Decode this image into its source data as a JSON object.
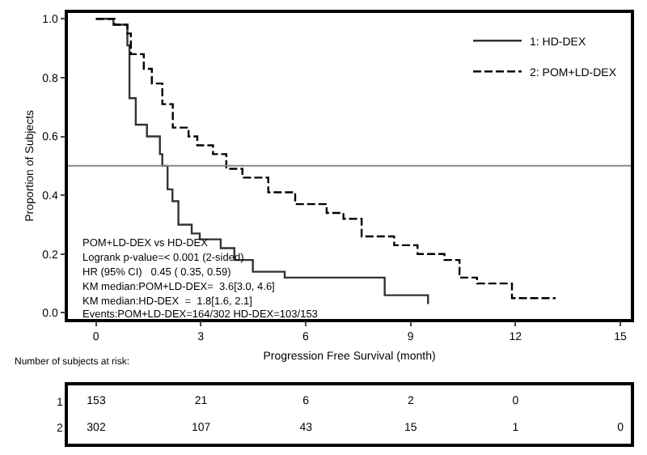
{
  "chart_data": [
    {
      "type": "step",
      "xlabel": "Progression Free Survival (month)",
      "ylabel": "Proportion of Subjects",
      "xlim": [
        -0.8,
        15.3
      ],
      "ylim": [
        -0.02,
        1.02
      ],
      "xticks": [
        0,
        3,
        6,
        9,
        12,
        15
      ],
      "yticks": [
        {
          "value": 0,
          "label": "0.0"
        },
        0.2,
        0.4,
        0.6,
        0.8,
        {
          "value": 1,
          "label": "1.0"
        }
      ],
      "legend": "top right",
      "series": [
        {
          "name": "1: HD-DEX",
          "color": "#333333",
          "line_style": "solid",
          "x": [
            0,
            0.5,
            0.9,
            0.96,
            1.14,
            1.46,
            1.83,
            1.9,
            2.05,
            2.19,
            2.36,
            2.74,
            2.97,
            3.57,
            3.96,
            4.49,
            5.4,
            8.26,
            9.5
          ],
          "values": [
            1.0,
            0.98,
            0.91,
            0.73,
            0.64,
            0.6,
            0.54,
            0.5,
            0.42,
            0.38,
            0.3,
            0.27,
            0.25,
            0.22,
            0.18,
            0.14,
            0.12,
            0.06,
            0.03
          ]
        },
        {
          "name": "2: POM+LD-DEX",
          "color": "#000000",
          "line_style": "dashed",
          "x": [
            0,
            0.53,
            0.9,
            1.0,
            1.37,
            1.6,
            1.9,
            2.2,
            2.65,
            2.9,
            3.35,
            3.73,
            4.19,
            4.93,
            5.7,
            6.6,
            7.08,
            7.6,
            8.53,
            9.2,
            9.97,
            10.4,
            10.9,
            11.9,
            13.15
          ],
          "values": [
            1.0,
            0.98,
            0.95,
            0.88,
            0.83,
            0.78,
            0.71,
            0.63,
            0.6,
            0.57,
            0.54,
            0.49,
            0.46,
            0.41,
            0.37,
            0.34,
            0.32,
            0.26,
            0.23,
            0.2,
            0.18,
            0.12,
            0.1,
            0.05,
            0.05
          ]
        }
      ],
      "ref_lines": [
        {
          "axis": "y",
          "value": 0.5,
          "color": "#888888"
        }
      ],
      "annotations": [
        "POM+LD-DEX vs HD-DEX",
        "Logrank p-value=< 0.001 (2-sided)",
        "HR (95% CI)   0.45 ( 0.35, 0.59)",
        "KM median:POM+LD-DEX=  3.6[3.0, 4.6]",
        "KM median:HD-DEX  =  1.8[1.6, 2.1]",
        "Events:POM+LD-DEX=164/302 HD-DEX=103/153"
      ]
    },
    {
      "type": "heatmap",
      "title": "Number of subjects at risk:",
      "categories": [
        null,
        null,
        null,
        null,
        null,
        null
      ],
      "y_categories": [
        "1",
        "2"
      ],
      "data_labels": true,
      "tick_labels": "y",
      "cells": [
        [
          153,
          21,
          6,
          2,
          0,
          null
        ],
        [
          302,
          107,
          43,
          15,
          1,
          0
        ]
      ]
    }
  ]
}
